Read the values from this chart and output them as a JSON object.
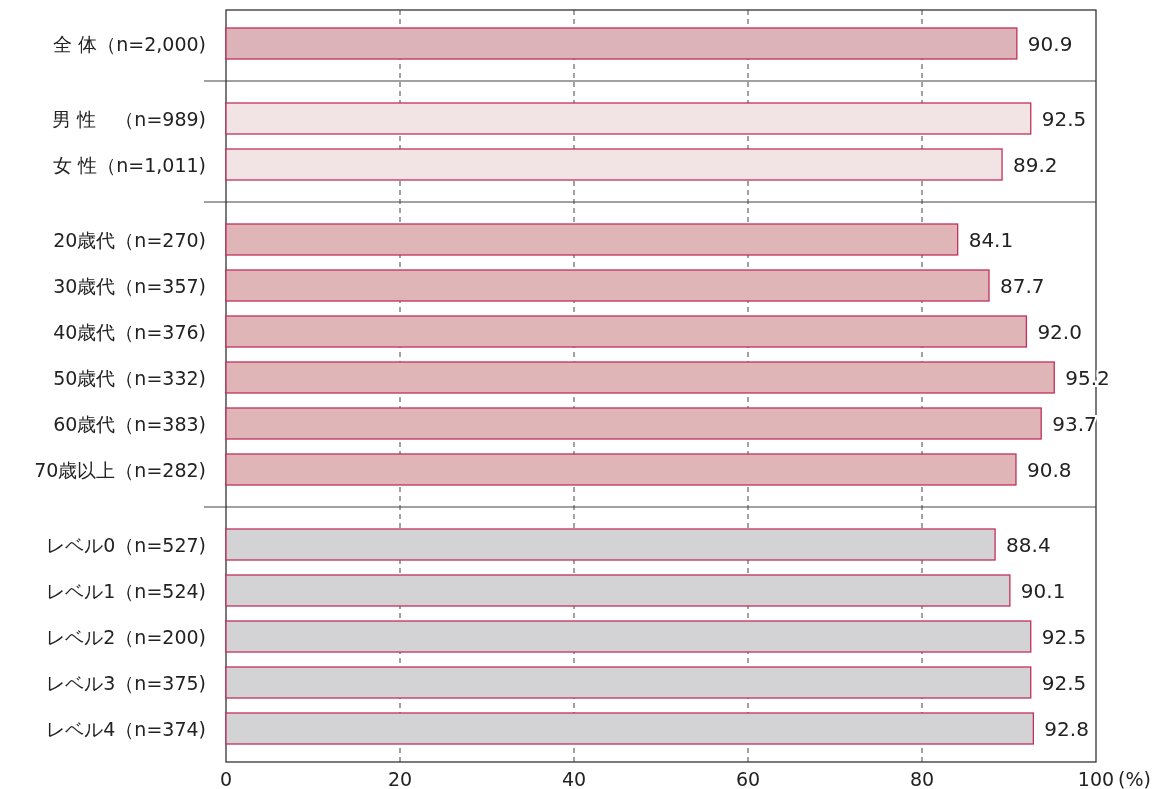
{
  "chart_data": {
    "type": "bar",
    "orientation": "horizontal",
    "categories": [
      "全 体（n=2,000)",
      "男 性　（n=989)",
      "女 性（n=1,011)",
      "20歳代（n=270)",
      "30歳代（n=357)",
      "40歳代（n=376)",
      "50歳代（n=332)",
      "60歳代（n=383)",
      "70歳以上（n=282)",
      "レベル0（n=527)",
      "レベル1（n=524)",
      "レベル2（n=200)",
      "レベル3（n=375)",
      "レベル4（n=374)"
    ],
    "values": [
      90.9,
      92.5,
      89.2,
      84.1,
      87.7,
      92.0,
      95.2,
      93.7,
      90.8,
      88.4,
      90.1,
      92.5,
      92.5,
      92.8
    ],
    "colors": [
      "#dcb3b8",
      "#f2e4e4",
      "#f2e4e4",
      "#dfb5b8",
      "#dfb5b8",
      "#dfb5b8",
      "#dfb5b8",
      "#dfb5b8",
      "#dfb5b8",
      "#d3d3d5",
      "#d3d3d5",
      "#d3d3d5",
      "#d3d3d5",
      "#d3d3d5"
    ],
    "xlim": [
      0,
      100
    ],
    "xticks": [
      0,
      20,
      40,
      60,
      80,
      100
    ],
    "xlabel": "(%)",
    "grid": "x",
    "value_labels": [
      "90.9",
      "92.5",
      "89.2",
      "84.1",
      "87.7",
      "92.0",
      "95.2",
      "93.7",
      "90.8",
      "88.4",
      "90.1",
      "92.5",
      "92.5",
      "92.8"
    ]
  }
}
